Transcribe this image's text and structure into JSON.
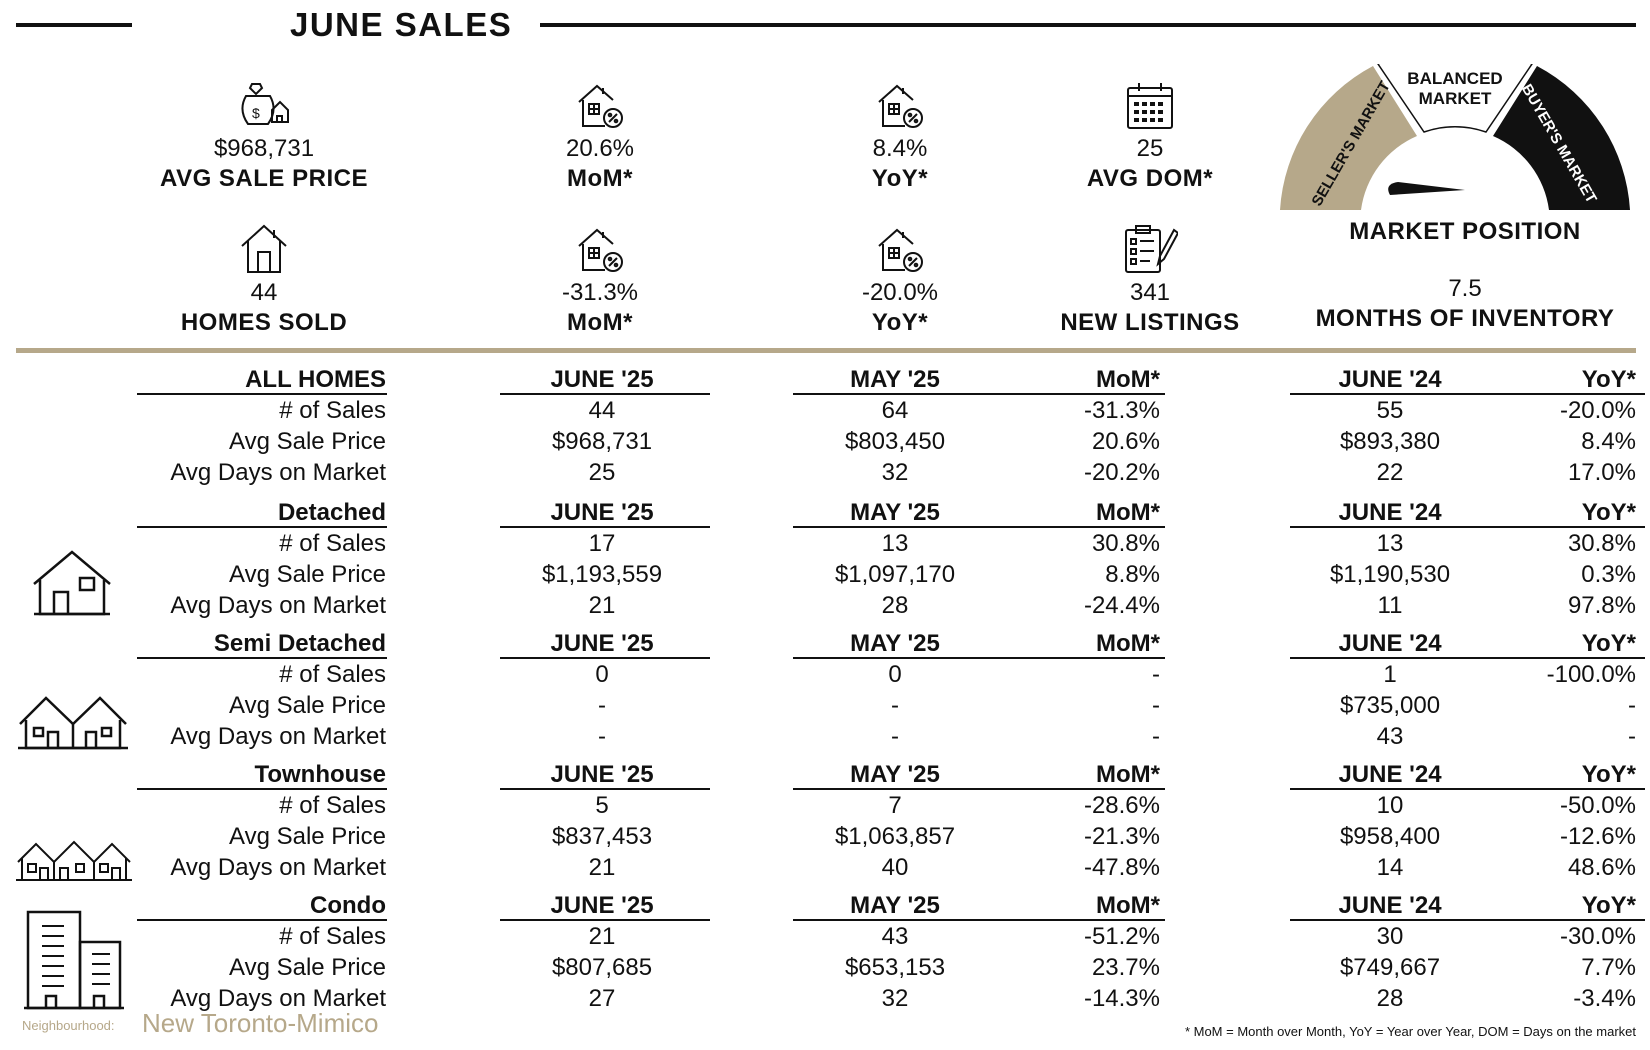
{
  "header": {
    "title": "JUNE SALES"
  },
  "stats": [
    {
      "icon": "money-bag-house-icon",
      "value": "$968,731",
      "label": "AVG SALE PRICE"
    },
    {
      "icon": "house-percent-icon",
      "value": "20.6%",
      "label": "MoM*"
    },
    {
      "icon": "house-percent-icon",
      "value": "8.4%",
      "label": "YoY*"
    },
    {
      "icon": "calendar-icon",
      "value": "25",
      "label": "AVG DOM*"
    },
    {
      "icon": "house-icon",
      "value": "44",
      "label": "HOMES SOLD"
    },
    {
      "icon": "house-percent-icon",
      "value": "-31.3%",
      "label": "MoM*"
    },
    {
      "icon": "house-percent-icon",
      "value": "-20.0%",
      "label": "YoY*"
    },
    {
      "icon": "clipboard-pen-icon",
      "value": "341",
      "label": "NEW LISTINGS"
    }
  ],
  "gauge": {
    "seller_label": "SELLER'S MARKET",
    "balanced_label_1": "BALANCED",
    "balanced_label_2": "MARKET",
    "buyer_label": "BUYER'S MARKET",
    "caption": "MARKET POSITION",
    "moi_value": "7.5",
    "moi_label": "MONTHS OF INVENTORY",
    "colors": {
      "seller": "#b6a88a",
      "balanced": "#ffffff",
      "buyer": "#111111"
    }
  },
  "columns": {
    "c1": "JUNE '25",
    "c2": "MAY '25",
    "c3": "MoM*",
    "c4": "JUNE '24",
    "c5": "YoY*"
  },
  "row_labels": {
    "sales": "# of Sales",
    "price": "Avg Sale Price",
    "dom": "Avg Days on Market"
  },
  "tables": [
    {
      "title": "ALL HOMES",
      "icon": "",
      "rows": [
        [
          "44",
          "64",
          "-31.3%",
          "55",
          "-20.0%"
        ],
        [
          "$968,731",
          "$803,450",
          "20.6%",
          "$893,380",
          "8.4%"
        ],
        [
          "25",
          "32",
          "-20.2%",
          "22",
          "17.0%"
        ]
      ]
    },
    {
      "title": "Detached",
      "icon": "detached-house-icon",
      "rows": [
        [
          "17",
          "13",
          "30.8%",
          "13",
          "30.8%"
        ],
        [
          "$1,193,559",
          "$1,097,170",
          "8.8%",
          "$1,190,530",
          "0.3%"
        ],
        [
          "21",
          "28",
          "-24.4%",
          "11",
          "97.8%"
        ]
      ]
    },
    {
      "title": "Semi Detached",
      "icon": "semi-detached-icon",
      "rows": [
        [
          "0",
          "0",
          "-",
          "1",
          "-100.0%"
        ],
        [
          "-",
          "-",
          "-",
          "$735,000",
          "-"
        ],
        [
          "-",
          "-",
          "-",
          "43",
          "-"
        ]
      ]
    },
    {
      "title": "Townhouse",
      "icon": "townhouse-icon",
      "rows": [
        [
          "5",
          "7",
          "-28.6%",
          "10",
          "-50.0%"
        ],
        [
          "$837,453",
          "$1,063,857",
          "-21.3%",
          "$958,400",
          "-12.6%"
        ],
        [
          "21",
          "40",
          "-47.8%",
          "14",
          "48.6%"
        ]
      ]
    },
    {
      "title": "Condo",
      "icon": "condo-icon",
      "rows": [
        [
          "21",
          "43",
          "-51.2%",
          "30",
          "-30.0%"
        ],
        [
          "$807,685",
          "$653,153",
          "23.7%",
          "$749,667",
          "7.7%"
        ],
        [
          "27",
          "32",
          "-14.3%",
          "28",
          "-3.4%"
        ]
      ]
    }
  ],
  "footer": {
    "neighbourhood_label": "Neighbourhood:",
    "neighbourhood": "New Toronto-Mimico",
    "footnote": "* MoM = Month over Month, YoY = Year over Year, DOM = Days on the market"
  }
}
